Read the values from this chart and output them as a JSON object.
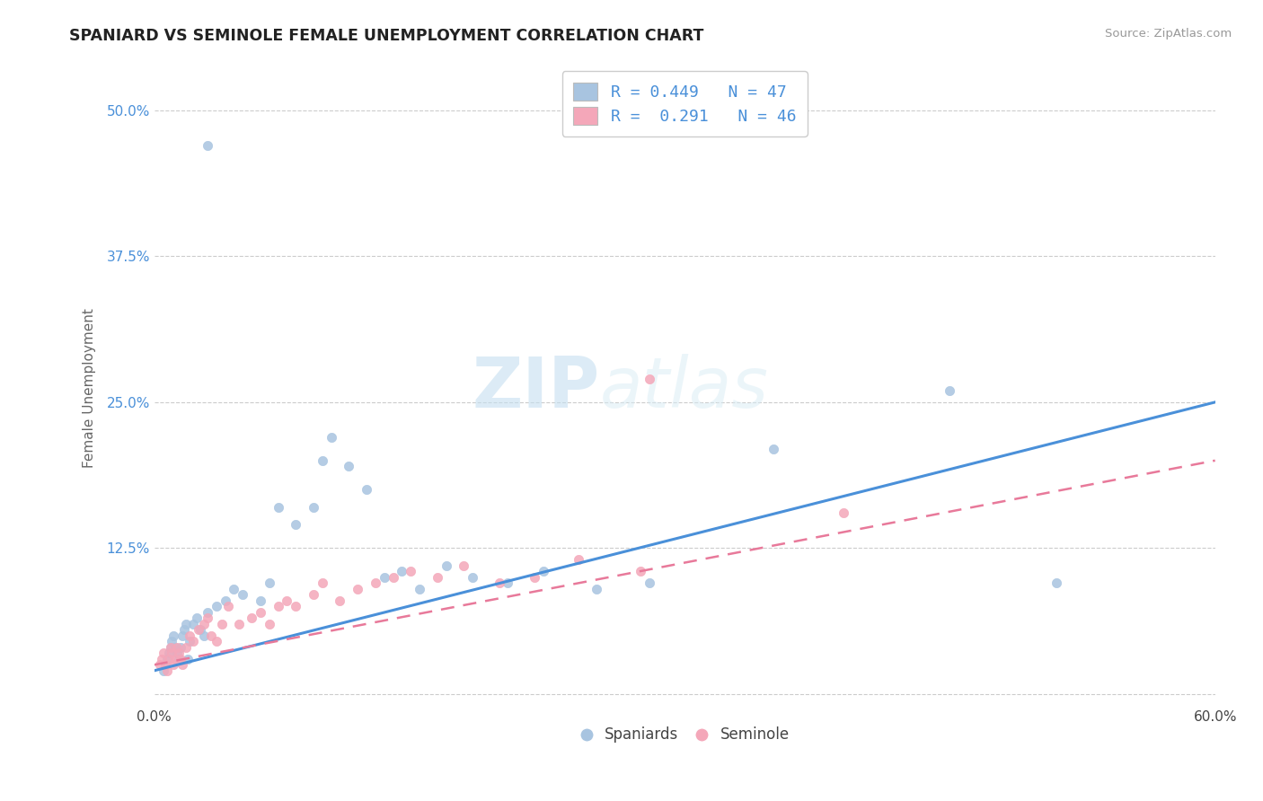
{
  "title": "SPANIARD VS SEMINOLE FEMALE UNEMPLOYMENT CORRELATION CHART",
  "source": "Source: ZipAtlas.com",
  "ylabel": "Female Unemployment",
  "xlim": [
    0.0,
    0.6
  ],
  "ylim": [
    -0.01,
    0.535
  ],
  "yticks": [
    0.0,
    0.125,
    0.25,
    0.375,
    0.5
  ],
  "ytick_labels": [
    "",
    "12.5%",
    "25.0%",
    "37.5%",
    "50.0%"
  ],
  "spaniards_R": 0.449,
  "spaniards_N": 47,
  "seminole_R": 0.291,
  "seminole_N": 46,
  "spaniards_color": "#a8c4e0",
  "seminole_color": "#f4a7b9",
  "line_spaniards_color": "#4a90d9",
  "line_seminole_color": "#e8799a",
  "watermark_zip": "ZIP",
  "watermark_atlas": "atlas",
  "spaniards_x": [
    0.03,
    0.005,
    0.006,
    0.007,
    0.008,
    0.009,
    0.01,
    0.011,
    0.012,
    0.013,
    0.014,
    0.015,
    0.016,
    0.017,
    0.018,
    0.019,
    0.02,
    0.022,
    0.024,
    0.026,
    0.028,
    0.03,
    0.035,
    0.04,
    0.045,
    0.05,
    0.06,
    0.065,
    0.07,
    0.08,
    0.09,
    0.095,
    0.1,
    0.11,
    0.12,
    0.13,
    0.14,
    0.15,
    0.165,
    0.18,
    0.2,
    0.22,
    0.25,
    0.28,
    0.35,
    0.45,
    0.51
  ],
  "spaniards_y": [
    0.47,
    0.02,
    0.025,
    0.03,
    0.035,
    0.04,
    0.045,
    0.05,
    0.04,
    0.035,
    0.03,
    0.04,
    0.05,
    0.055,
    0.06,
    0.03,
    0.045,
    0.06,
    0.065,
    0.055,
    0.05,
    0.07,
    0.075,
    0.08,
    0.09,
    0.085,
    0.08,
    0.095,
    0.16,
    0.145,
    0.16,
    0.2,
    0.22,
    0.195,
    0.175,
    0.1,
    0.105,
    0.09,
    0.11,
    0.1,
    0.095,
    0.105,
    0.09,
    0.095,
    0.21,
    0.26,
    0.095
  ],
  "seminole_x": [
    0.003,
    0.004,
    0.005,
    0.006,
    0.007,
    0.008,
    0.009,
    0.01,
    0.011,
    0.012,
    0.013,
    0.014,
    0.015,
    0.016,
    0.018,
    0.02,
    0.022,
    0.025,
    0.028,
    0.03,
    0.032,
    0.035,
    0.038,
    0.042,
    0.048,
    0.055,
    0.06,
    0.065,
    0.07,
    0.075,
    0.08,
    0.09,
    0.095,
    0.105,
    0.115,
    0.125,
    0.135,
    0.145,
    0.16,
    0.175,
    0.195,
    0.215,
    0.24,
    0.275,
    0.28,
    0.39
  ],
  "seminole_y": [
    0.025,
    0.03,
    0.035,
    0.025,
    0.02,
    0.03,
    0.04,
    0.035,
    0.025,
    0.03,
    0.04,
    0.035,
    0.03,
    0.025,
    0.04,
    0.05,
    0.045,
    0.055,
    0.06,
    0.065,
    0.05,
    0.045,
    0.06,
    0.075,
    0.06,
    0.065,
    0.07,
    0.06,
    0.075,
    0.08,
    0.075,
    0.085,
    0.095,
    0.08,
    0.09,
    0.095,
    0.1,
    0.105,
    0.1,
    0.11,
    0.095,
    0.1,
    0.115,
    0.105,
    0.27,
    0.155
  ],
  "background_color": "#ffffff",
  "grid_color": "#cccccc",
  "sp_line_x0": 0.0,
  "sp_line_y0": 0.02,
  "sp_line_x1": 0.6,
  "sp_line_y1": 0.25,
  "sem_line_x0": 0.0,
  "sem_line_y0": 0.025,
  "sem_line_x1": 0.6,
  "sem_line_y1": 0.2
}
